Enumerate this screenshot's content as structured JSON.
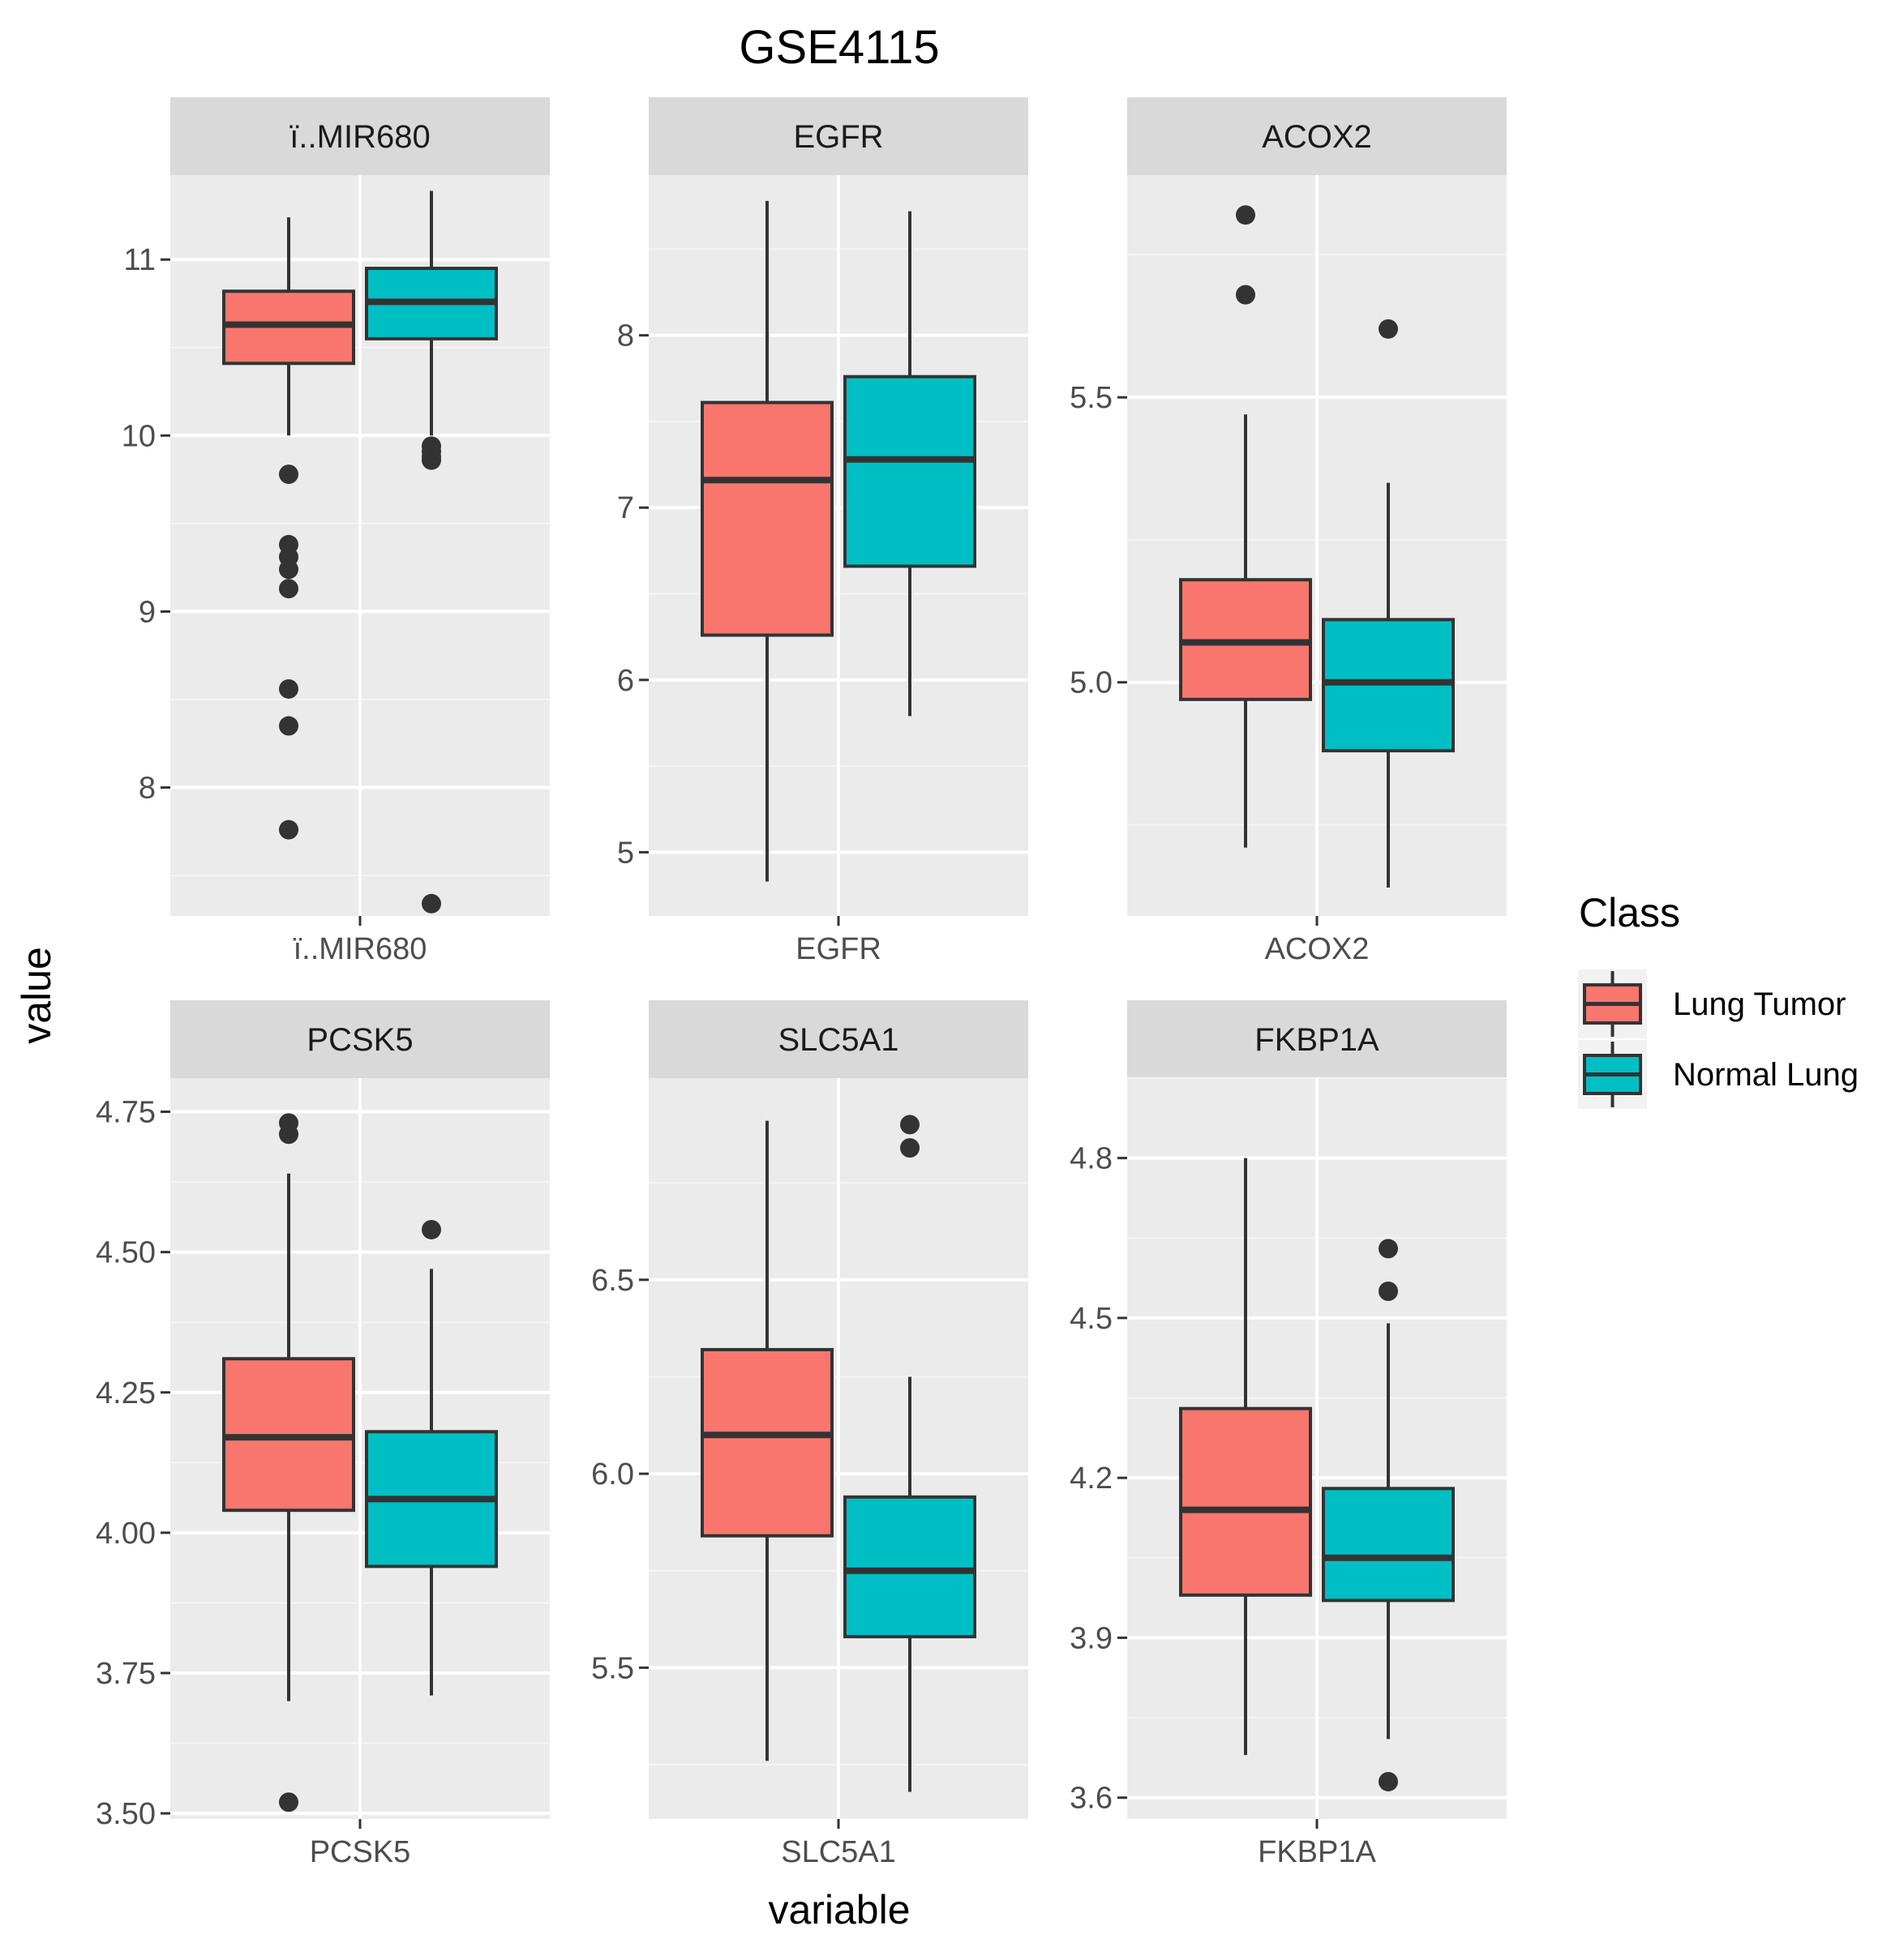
{
  "chart_data": {
    "type": "boxplot",
    "title": "GSE4115",
    "xlabel": "variable",
    "ylabel": "value",
    "legend": {
      "title": "Class",
      "placement": "right",
      "entries": [
        {
          "label": "Lung Tumor",
          "color": "#F8766D"
        },
        {
          "label": "Normal Lung",
          "color": "#00BFC4"
        }
      ]
    },
    "panels": [
      {
        "name": "ï..MIR680",
        "ylim": [
          7.27,
          11.48
        ],
        "yticks": [
          8,
          9,
          10,
          11
        ],
        "ytick_labels": [
          "8",
          "9",
          "10",
          "11"
        ],
        "boxes": [
          {
            "class": "Lung Tumor",
            "whisker_low": 10.0,
            "q1": 10.41,
            "median": 10.63,
            "q3": 10.82,
            "whisker_high": 11.24,
            "outliers": [
              9.78,
              9.38,
              9.31,
              9.24,
              9.13,
              8.56,
              8.35,
              7.76
            ]
          },
          {
            "class": "Normal Lung",
            "whisker_low": 10.0,
            "q1": 10.55,
            "median": 10.76,
            "q3": 10.95,
            "whisker_high": 11.39,
            "outliers": [
              9.94,
              9.91,
              9.88,
              9.86,
              7.34
            ]
          }
        ]
      },
      {
        "name": "EGFR",
        "ylim": [
          4.63,
          8.93
        ],
        "yticks": [
          5,
          6,
          7,
          8
        ],
        "ytick_labels": [
          "5",
          "6",
          "7",
          "8"
        ],
        "boxes": [
          {
            "class": "Lung Tumor",
            "whisker_low": 4.83,
            "q1": 6.26,
            "median": 7.16,
            "q3": 7.61,
            "whisker_high": 8.78,
            "outliers": []
          },
          {
            "class": "Normal Lung",
            "whisker_low": 5.79,
            "q1": 6.66,
            "median": 7.28,
            "q3": 7.76,
            "whisker_high": 8.72,
            "outliers": []
          }
        ]
      },
      {
        "name": "ACOX2",
        "ylim": [
          4.59,
          5.89
        ],
        "yticks": [
          5.0,
          5.5
        ],
        "ytick_labels": [
          "5.0",
          "5.5"
        ],
        "boxes": [
          {
            "class": "Lung Tumor",
            "whisker_low": 4.71,
            "q1": 4.97,
            "median": 5.07,
            "q3": 5.18,
            "whisker_high": 5.47,
            "outliers": [
              5.82,
              5.68
            ]
          },
          {
            "class": "Normal Lung",
            "whisker_low": 4.64,
            "q1": 4.88,
            "median": 5.0,
            "q3": 5.11,
            "whisker_high": 5.35,
            "outliers": [
              5.62
            ]
          }
        ]
      },
      {
        "name": "PCSK5",
        "ylim": [
          3.49,
          4.81
        ],
        "yticks": [
          3.5,
          3.75,
          4.0,
          4.25,
          4.5,
          4.75
        ],
        "ytick_labels": [
          "3.50",
          "3.75",
          "4.00",
          "4.25",
          "4.50",
          "4.75"
        ],
        "boxes": [
          {
            "class": "Lung Tumor",
            "whisker_low": 3.7,
            "q1": 4.04,
            "median": 4.17,
            "q3": 4.31,
            "whisker_high": 4.64,
            "outliers": [
              4.73,
              4.71,
              3.52
            ]
          },
          {
            "class": "Normal Lung",
            "whisker_low": 3.71,
            "q1": 3.94,
            "median": 4.06,
            "q3": 4.18,
            "whisker_high": 4.47,
            "outliers": [
              4.54
            ]
          }
        ]
      },
      {
        "name": "SLC5A1",
        "ylim": [
          5.11,
          7.02
        ],
        "yticks": [
          5.5,
          6.0,
          6.5
        ],
        "ytick_labels": [
          "5.5",
          "6.0",
          "6.5"
        ],
        "boxes": [
          {
            "class": "Lung Tumor",
            "whisker_low": 5.26,
            "q1": 5.84,
            "median": 6.1,
            "q3": 6.32,
            "whisker_high": 6.91,
            "outliers": []
          },
          {
            "class": "Normal Lung",
            "whisker_low": 5.18,
            "q1": 5.58,
            "median": 5.75,
            "q3": 5.94,
            "whisker_high": 6.25,
            "outliers": [
              6.9,
              6.84
            ]
          }
        ]
      },
      {
        "name": "FKBP1A",
        "ylim": [
          3.56,
          4.95
        ],
        "yticks": [
          3.6,
          3.9,
          4.2,
          4.5,
          4.8
        ],
        "ytick_labels": [
          "3.6",
          "3.9",
          "4.2",
          "4.5",
          "4.8"
        ],
        "boxes": [
          {
            "class": "Lung Tumor",
            "whisker_low": 3.68,
            "q1": 3.98,
            "median": 4.14,
            "q3": 4.33,
            "whisker_high": 4.8,
            "outliers": []
          },
          {
            "class": "Normal Lung",
            "whisker_low": 3.71,
            "q1": 3.97,
            "median": 4.05,
            "q3": 4.18,
            "whisker_high": 4.49,
            "outliers": [
              4.63,
              4.55,
              3.63
            ]
          }
        ]
      }
    ]
  }
}
